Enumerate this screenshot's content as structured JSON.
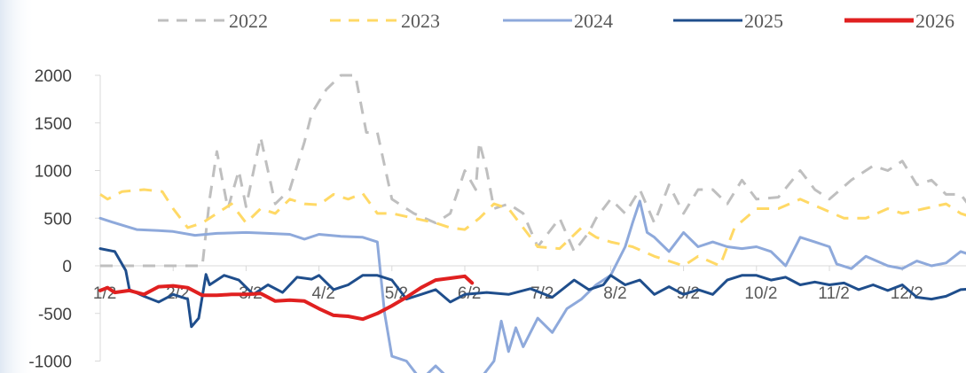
{
  "chart_data": {
    "type": "line",
    "title": "",
    "xlabel": "",
    "ylabel": "",
    "ylim": [
      -1000,
      2000
    ],
    "yticks": [
      2000,
      1500,
      1000,
      500,
      0,
      -500,
      -1000
    ],
    "ytick_labels": [
      "2000",
      "1500",
      "1000",
      "500",
      "0",
      "-500",
      "-1000"
    ],
    "xtick_labels": [
      "1/2",
      "2/2",
      "3/2",
      "4/2",
      "5/2",
      "6/2",
      "7/2",
      "8/2",
      "9/2",
      "10/2",
      "11/2",
      "12/2"
    ],
    "x_unit": "month (1 = Jan)",
    "grid": false,
    "legend_position": "top",
    "series": [
      {
        "name": "2022",
        "color": "#BFBFBF",
        "style": "dashed",
        "points": [
          [
            1.0,
            0
          ],
          [
            1.5,
            0
          ],
          [
            2.0,
            0
          ],
          [
            2.4,
            0
          ],
          [
            2.5,
            700
          ],
          [
            2.6,
            1200
          ],
          [
            2.75,
            600
          ],
          [
            2.9,
            1000
          ],
          [
            3.0,
            620
          ],
          [
            3.2,
            1350
          ],
          [
            3.4,
            650
          ],
          [
            3.6,
            800
          ],
          [
            3.8,
            1300
          ],
          [
            3.9,
            1600
          ],
          [
            4.1,
            1850
          ],
          [
            4.3,
            2000
          ],
          [
            4.5,
            2000
          ],
          [
            4.65,
            1400
          ],
          [
            4.8,
            1400
          ],
          [
            5.0,
            700
          ],
          [
            5.3,
            550
          ],
          [
            5.6,
            450
          ],
          [
            5.8,
            550
          ],
          [
            6.0,
            1000
          ],
          [
            6.15,
            800
          ],
          [
            6.2,
            1300
          ],
          [
            6.3,
            1000
          ],
          [
            6.4,
            600
          ],
          [
            6.6,
            650
          ],
          [
            6.8,
            550
          ],
          [
            7.0,
            200
          ],
          [
            7.3,
            500
          ],
          [
            7.5,
            150
          ],
          [
            7.7,
            350
          ],
          [
            7.8,
            500
          ],
          [
            8.0,
            700
          ],
          [
            8.2,
            550
          ],
          [
            8.4,
            800
          ],
          [
            8.6,
            450
          ],
          [
            8.8,
            850
          ],
          [
            9.0,
            550
          ],
          [
            9.2,
            800
          ],
          [
            9.4,
            800
          ],
          [
            9.6,
            650
          ],
          [
            9.8,
            900
          ],
          [
            10.0,
            700
          ],
          [
            10.3,
            720
          ],
          [
            10.6,
            1000
          ],
          [
            10.8,
            800
          ],
          [
            11.0,
            700
          ],
          [
            11.3,
            900
          ],
          [
            11.6,
            1050
          ],
          [
            11.8,
            1000
          ],
          [
            12.0,
            1100
          ],
          [
            12.2,
            850
          ],
          [
            12.4,
            900
          ],
          [
            12.6,
            750
          ],
          [
            12.8,
            750
          ],
          [
            13.0,
            550
          ]
        ]
      },
      {
        "name": "2023",
        "color": "#FFD966",
        "style": "dashed",
        "points": [
          [
            1.0,
            750
          ],
          [
            1.1,
            700
          ],
          [
            1.3,
            780
          ],
          [
            1.6,
            800
          ],
          [
            1.85,
            780
          ],
          [
            2.0,
            600
          ],
          [
            2.2,
            400
          ],
          [
            2.4,
            450
          ],
          [
            2.6,
            550
          ],
          [
            2.8,
            650
          ],
          [
            3.0,
            450
          ],
          [
            3.2,
            600
          ],
          [
            3.4,
            550
          ],
          [
            3.6,
            700
          ],
          [
            3.8,
            650
          ],
          [
            4.0,
            640
          ],
          [
            4.2,
            750
          ],
          [
            4.4,
            700
          ],
          [
            4.6,
            760
          ],
          [
            4.8,
            550
          ],
          [
            5.0,
            550
          ],
          [
            5.3,
            500
          ],
          [
            5.6,
            450
          ],
          [
            5.8,
            400
          ],
          [
            6.0,
            380
          ],
          [
            6.2,
            500
          ],
          [
            6.4,
            650
          ],
          [
            6.6,
            600
          ],
          [
            6.8,
            400
          ],
          [
            7.0,
            200
          ],
          [
            7.3,
            180
          ],
          [
            7.6,
            400
          ],
          [
            7.8,
            300
          ],
          [
            8.0,
            250
          ],
          [
            8.3,
            200
          ],
          [
            8.6,
            100
          ],
          [
            9.0,
            0
          ],
          [
            9.2,
            100
          ],
          [
            9.5,
            0
          ],
          [
            9.7,
            400
          ],
          [
            10.0,
            600
          ],
          [
            10.3,
            600
          ],
          [
            10.6,
            700
          ],
          [
            10.9,
            600
          ],
          [
            11.2,
            500
          ],
          [
            11.5,
            500
          ],
          [
            11.8,
            600
          ],
          [
            12.0,
            550
          ],
          [
            12.3,
            600
          ],
          [
            12.6,
            650
          ],
          [
            12.8,
            550
          ],
          [
            13.0,
            500
          ]
        ]
      },
      {
        "name": "2024",
        "color": "#8EA9DB",
        "style": "solid",
        "points": [
          [
            1.0,
            500
          ],
          [
            1.2,
            450
          ],
          [
            1.5,
            380
          ],
          [
            1.8,
            370
          ],
          [
            2.0,
            360
          ],
          [
            2.3,
            320
          ],
          [
            2.6,
            340
          ],
          [
            3.0,
            350
          ],
          [
            3.3,
            340
          ],
          [
            3.6,
            330
          ],
          [
            3.8,
            280
          ],
          [
            4.0,
            330
          ],
          [
            4.3,
            310
          ],
          [
            4.6,
            300
          ],
          [
            4.8,
            250
          ],
          [
            4.9,
            -500
          ],
          [
            5.0,
            -950
          ],
          [
            5.2,
            -1000
          ],
          [
            5.4,
            -1200
          ],
          [
            5.6,
            -1050
          ],
          [
            5.8,
            -1200
          ],
          [
            6.0,
            -1300
          ],
          [
            6.1,
            -1300
          ],
          [
            6.2,
            -1200
          ],
          [
            6.4,
            -1000
          ],
          [
            6.5,
            -580
          ],
          [
            6.6,
            -900
          ],
          [
            6.7,
            -650
          ],
          [
            6.8,
            -850
          ],
          [
            7.0,
            -550
          ],
          [
            7.2,
            -700
          ],
          [
            7.4,
            -450
          ],
          [
            7.6,
            -350
          ],
          [
            7.8,
            -200
          ],
          [
            8.0,
            -100
          ],
          [
            8.2,
            200
          ],
          [
            8.3,
            450
          ],
          [
            8.4,
            680
          ],
          [
            8.5,
            350
          ],
          [
            8.6,
            300
          ],
          [
            8.8,
            150
          ],
          [
            9.0,
            350
          ],
          [
            9.2,
            200
          ],
          [
            9.4,
            250
          ],
          [
            9.6,
            200
          ],
          [
            9.8,
            180
          ],
          [
            10.0,
            200
          ],
          [
            10.2,
            150
          ],
          [
            10.4,
            0
          ],
          [
            10.6,
            300
          ],
          [
            10.8,
            250
          ],
          [
            11.0,
            200
          ],
          [
            11.1,
            20
          ],
          [
            11.3,
            -30
          ],
          [
            11.5,
            100
          ],
          [
            11.8,
            0
          ],
          [
            12.0,
            -30
          ],
          [
            12.2,
            50
          ],
          [
            12.4,
            0
          ],
          [
            12.6,
            30
          ],
          [
            12.8,
            150
          ],
          [
            13.0,
            100
          ]
        ]
      },
      {
        "name": "2025",
        "color": "#1F4E8C",
        "style": "solid",
        "points": [
          [
            1.0,
            180
          ],
          [
            1.2,
            150
          ],
          [
            1.35,
            -50
          ],
          [
            1.4,
            -250
          ],
          [
            1.6,
            -320
          ],
          [
            1.8,
            -380
          ],
          [
            2.0,
            -300
          ],
          [
            2.2,
            -350
          ],
          [
            2.25,
            -640
          ],
          [
            2.35,
            -550
          ],
          [
            2.45,
            -90
          ],
          [
            2.5,
            -200
          ],
          [
            2.7,
            -100
          ],
          [
            2.9,
            -150
          ],
          [
            3.1,
            -300
          ],
          [
            3.3,
            -200
          ],
          [
            3.5,
            -280
          ],
          [
            3.7,
            -120
          ],
          [
            3.9,
            -140
          ],
          [
            4.0,
            -100
          ],
          [
            4.2,
            -250
          ],
          [
            4.4,
            -200
          ],
          [
            4.6,
            -100
          ],
          [
            4.8,
            -100
          ],
          [
            5.0,
            -150
          ],
          [
            5.2,
            -350
          ],
          [
            5.4,
            -300
          ],
          [
            5.6,
            -250
          ],
          [
            5.8,
            -380
          ],
          [
            6.0,
            -300
          ],
          [
            6.3,
            -280
          ],
          [
            6.6,
            -300
          ],
          [
            6.9,
            -240
          ],
          [
            7.2,
            -330
          ],
          [
            7.5,
            -150
          ],
          [
            7.7,
            -250
          ],
          [
            7.9,
            -200
          ],
          [
            8.0,
            -100
          ],
          [
            8.2,
            -200
          ],
          [
            8.4,
            -150
          ],
          [
            8.6,
            -300
          ],
          [
            8.8,
            -220
          ],
          [
            9.0,
            -300
          ],
          [
            9.2,
            -250
          ],
          [
            9.4,
            -300
          ],
          [
            9.6,
            -150
          ],
          [
            9.8,
            -100
          ],
          [
            10.0,
            -100
          ],
          [
            10.2,
            -150
          ],
          [
            10.4,
            -120
          ],
          [
            10.6,
            -200
          ],
          [
            10.8,
            -170
          ],
          [
            11.0,
            -200
          ],
          [
            11.2,
            -180
          ],
          [
            11.4,
            -250
          ],
          [
            11.6,
            -200
          ],
          [
            11.8,
            -260
          ],
          [
            12.0,
            -200
          ],
          [
            12.2,
            -330
          ],
          [
            12.4,
            -350
          ],
          [
            12.6,
            -320
          ],
          [
            12.8,
            -250
          ],
          [
            13.0,
            -240
          ]
        ]
      },
      {
        "name": "2026",
        "color": "#E02020",
        "style": "solid",
        "points": [
          [
            1.0,
            -260
          ],
          [
            1.1,
            -230
          ],
          [
            1.2,
            -280
          ],
          [
            1.4,
            -260
          ],
          [
            1.6,
            -300
          ],
          [
            1.8,
            -220
          ],
          [
            2.0,
            -210
          ],
          [
            2.2,
            -230
          ],
          [
            2.4,
            -310
          ],
          [
            2.6,
            -310
          ],
          [
            2.8,
            -300
          ],
          [
            3.0,
            -300
          ],
          [
            3.2,
            -290
          ],
          [
            3.4,
            -370
          ],
          [
            3.6,
            -360
          ],
          [
            3.8,
            -370
          ],
          [
            4.0,
            -450
          ],
          [
            4.2,
            -520
          ],
          [
            4.4,
            -530
          ],
          [
            4.6,
            -560
          ],
          [
            4.8,
            -500
          ],
          [
            5.0,
            -420
          ],
          [
            5.2,
            -330
          ],
          [
            5.4,
            -230
          ],
          [
            5.6,
            -150
          ],
          [
            5.8,
            -130
          ],
          [
            6.0,
            -110
          ],
          [
            6.1,
            -180
          ]
        ]
      }
    ]
  }
}
